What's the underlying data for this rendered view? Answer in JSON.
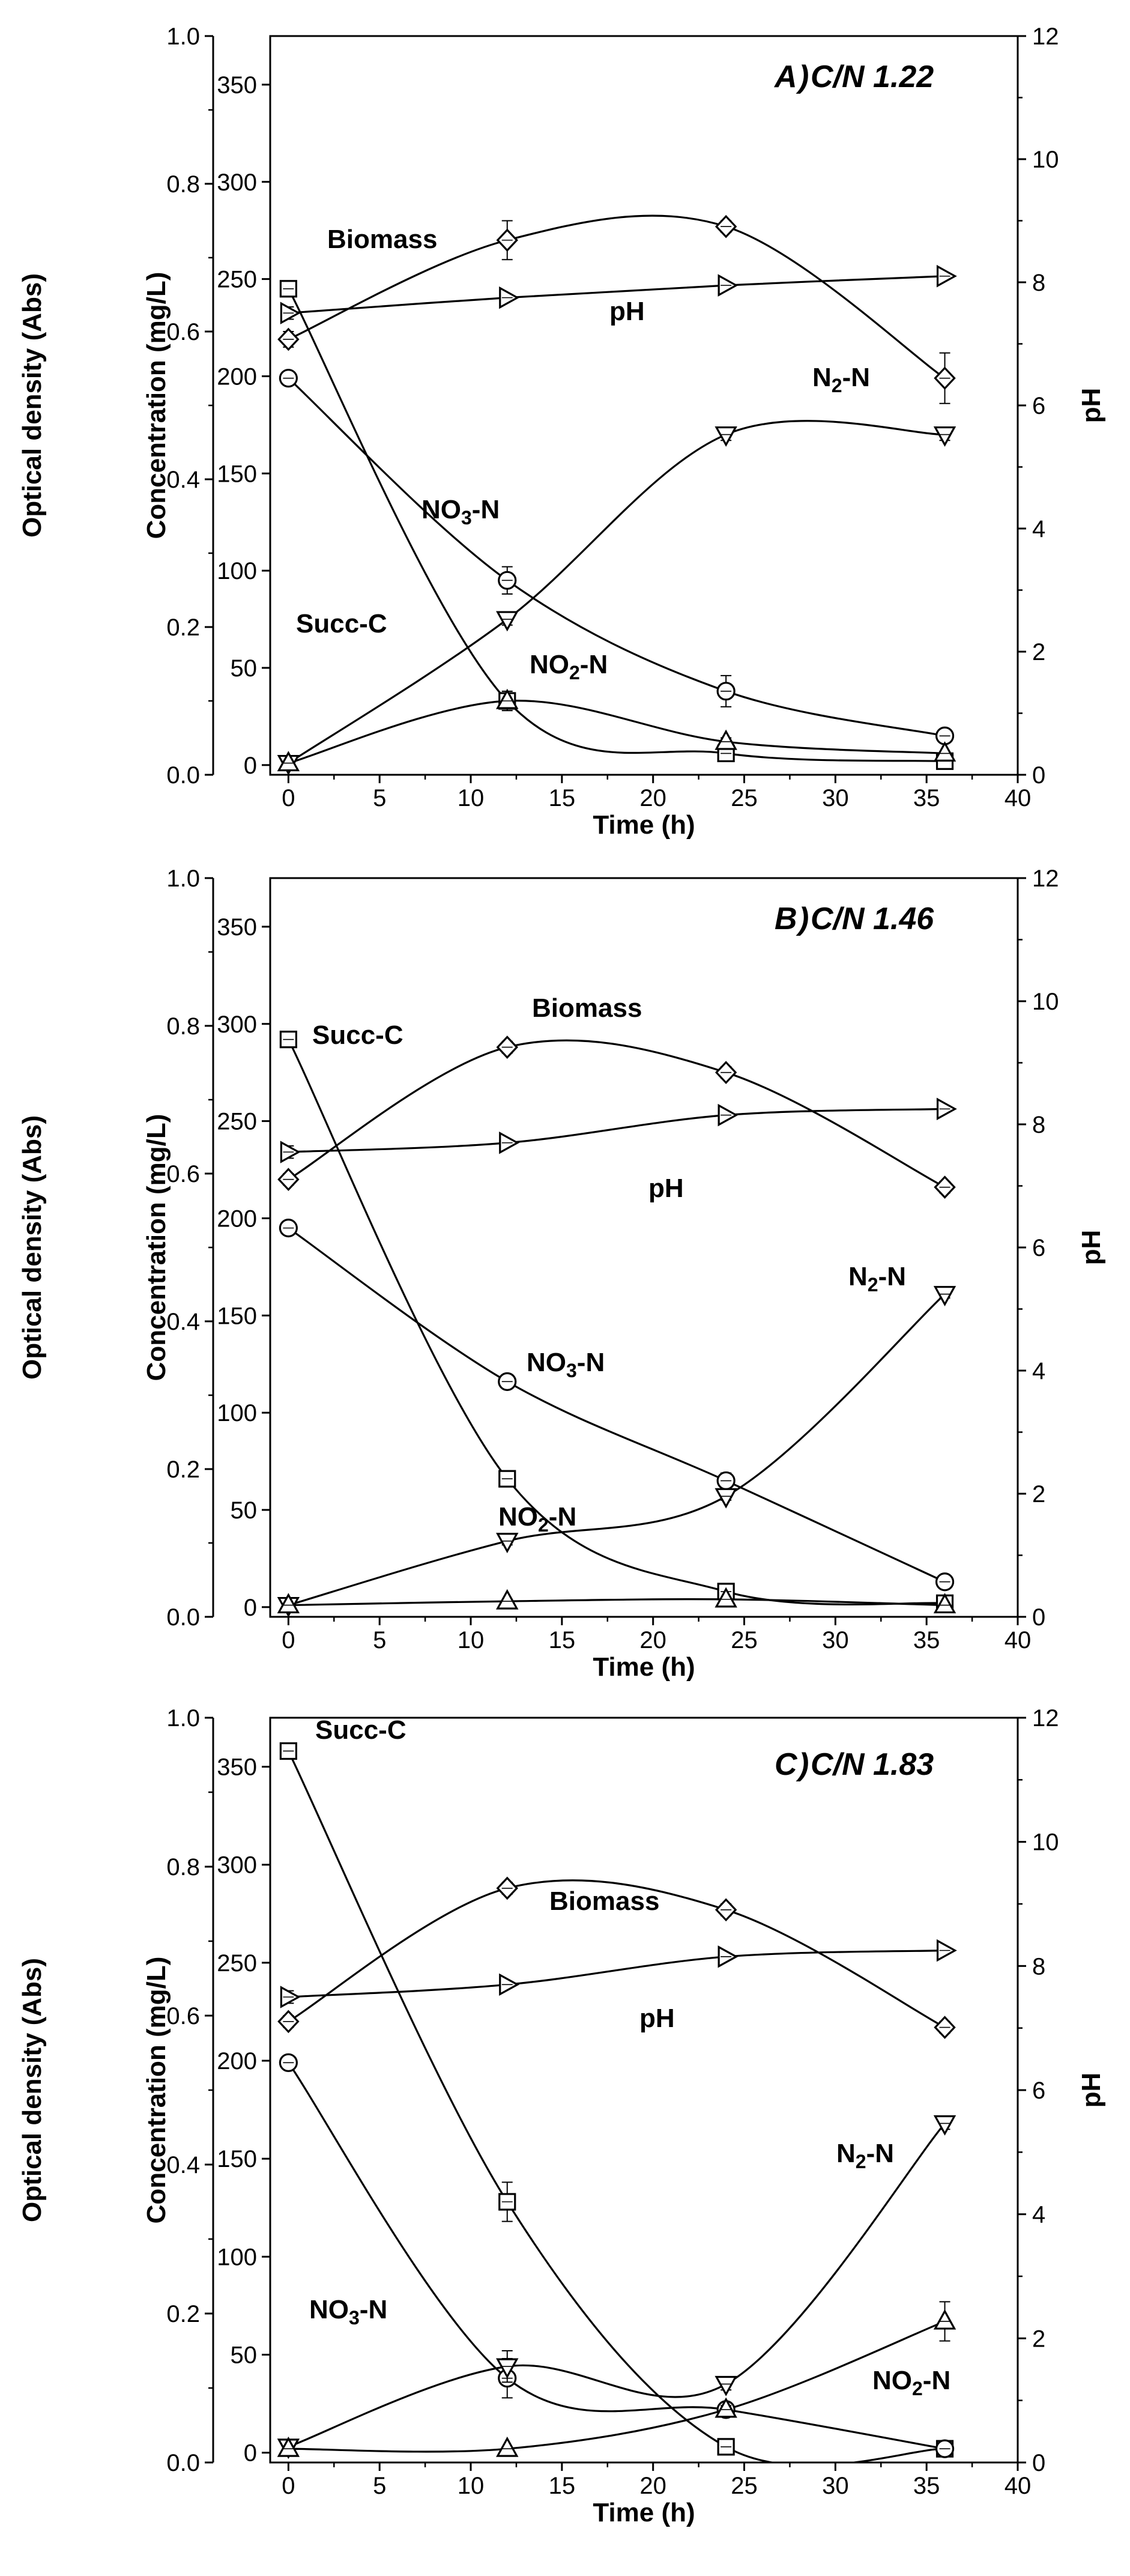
{
  "chart_data": [
    {
      "type": "line",
      "panel_letter": "A",
      "title": "C/N 1.22",
      "x": [
        0,
        12,
        24,
        36
      ],
      "xlabel": "Time (h)",
      "xticks": [
        "0",
        "5",
        "10",
        "15",
        "20",
        "25",
        "30",
        "35",
        "40"
      ],
      "xlim": [
        -1,
        40
      ],
      "ylabel_outer": "Optical density (Abs)",
      "ylim_outer": [
        0,
        1
      ],
      "yticks_outer": [
        "0.0",
        "0.2",
        "0.4",
        "0.6",
        "0.8",
        "1.0"
      ],
      "ylabel": "Concentration (mg/L)",
      "ylim": [
        -5,
        375
      ],
      "yticks": [
        "0",
        "50",
        "100",
        "150",
        "200",
        "250",
        "300",
        "350"
      ],
      "ylabel_right": "pH",
      "ylim_right": [
        0,
        12
      ],
      "yticks_right": [
        "0",
        "2",
        "4",
        "6",
        "8",
        "10",
        "12"
      ],
      "series": [
        {
          "name": "Biomass",
          "label_text": "Biomass",
          "axis": "left",
          "marker": "diamond",
          "values": [
            219,
            270,
            277,
            199
          ],
          "errors": [
            4,
            10,
            3,
            13
          ]
        },
        {
          "name": "pH",
          "label_text": "pH",
          "axis": "right",
          "marker": "triangle-right",
          "values": [
            7.5,
            7.75,
            7.95,
            8.1
          ],
          "errors": [
            0.1,
            0.05,
            0.05,
            0.05
          ]
        },
        {
          "name": "Succ-C",
          "label_text": "Succ-C",
          "axis": "left",
          "marker": "square",
          "values": [
            245,
            33,
            6,
            2
          ],
          "errors": [
            2,
            4,
            2,
            1
          ]
        },
        {
          "name": "NO3-N",
          "label_text": "NO₃-N",
          "axis": "left",
          "marker": "circle",
          "values": [
            199,
            95,
            38,
            15
          ],
          "errors": [
            3,
            7,
            8,
            3
          ]
        },
        {
          "name": "N2-N",
          "label_text": "N₂-N",
          "axis": "left",
          "marker": "triangle-down",
          "values": [
            1,
            75,
            170,
            170
          ],
          "errors": [
            1,
            3,
            3,
            3
          ]
        },
        {
          "name": "NO2-N",
          "label_text": "NO₂-N",
          "axis": "left",
          "marker": "triangle-up",
          "values": [
            1,
            33,
            12,
            6
          ],
          "errors": [
            1,
            5,
            2,
            1
          ]
        }
      ]
    },
    {
      "type": "line",
      "panel_letter": "B",
      "title": "C/N 1.46",
      "x": [
        0,
        12,
        24,
        36
      ],
      "xlabel": "Time (h)",
      "xticks": [
        "0",
        "5",
        "10",
        "15",
        "20",
        "25",
        "30",
        "35",
        "40"
      ],
      "xlim": [
        -1,
        40
      ],
      "ylabel_outer": "Optical density (Abs)",
      "ylim_outer": [
        0,
        1
      ],
      "yticks_outer": [
        "0.0",
        "0.2",
        "0.4",
        "0.6",
        "0.8",
        "1.0"
      ],
      "ylabel": "Concentration (mg/L)",
      "ylim": [
        -5,
        375
      ],
      "yticks": [
        "0",
        "50",
        "100",
        "150",
        "200",
        "250",
        "300",
        "350"
      ],
      "ylabel_right": "pH",
      "ylim_right": [
        0,
        12
      ],
      "yticks_right": [
        "0",
        "2",
        "4",
        "6",
        "8",
        "10",
        "12"
      ],
      "series": [
        {
          "name": "Biomass",
          "label_text": "Biomass",
          "axis": "left",
          "marker": "diamond",
          "values": [
            220,
            288,
            275,
            216
          ],
          "errors": [
            3,
            3,
            3,
            3
          ]
        },
        {
          "name": "pH",
          "label_text": "pH",
          "axis": "right",
          "marker": "triangle-right",
          "values": [
            7.55,
            7.7,
            8.15,
            8.25
          ],
          "errors": [
            0.1,
            0.05,
            0.05,
            0.05
          ]
        },
        {
          "name": "Succ-C",
          "label_text": "Succ-C",
          "axis": "left",
          "marker": "square",
          "values": [
            292,
            66,
            8,
            2
          ],
          "errors": [
            2,
            2,
            2,
            1
          ]
        },
        {
          "name": "NO3-N",
          "label_text": "NO₃-N",
          "axis": "left",
          "marker": "circle",
          "values": [
            195,
            116,
            65,
            13
          ],
          "errors": [
            3,
            2,
            4,
            2
          ]
        },
        {
          "name": "N2-N",
          "label_text": "N₂-N",
          "axis": "left",
          "marker": "triangle-down",
          "values": [
            1,
            34,
            57,
            161
          ],
          "errors": [
            1,
            2,
            2,
            2
          ]
        },
        {
          "name": "NO2-N",
          "label_text": "NO₂-N",
          "axis": "left",
          "marker": "triangle-up",
          "values": [
            1,
            3,
            4,
            1
          ],
          "errors": [
            1,
            1,
            1,
            1
          ]
        }
      ]
    },
    {
      "type": "line",
      "panel_letter": "C",
      "title": "C/N 1.83",
      "x": [
        0,
        12,
        24,
        36
      ],
      "xlabel": "Time (h)",
      "xticks": [
        "0",
        "5",
        "10",
        "15",
        "20",
        "25",
        "30",
        "35",
        "40"
      ],
      "xlim": [
        -1,
        40
      ],
      "ylabel_outer": "Optical density (Abs)",
      "ylim_outer": [
        0,
        1
      ],
      "yticks_outer": [
        "0.0",
        "0.2",
        "0.4",
        "0.6",
        "0.8",
        "1.0"
      ],
      "ylabel": "Concentration (mg/L)",
      "ylim": [
        -5,
        375
      ],
      "yticks": [
        "0",
        "50",
        "100",
        "150",
        "200",
        "250",
        "300",
        "350"
      ],
      "ylabel_right": "pH",
      "ylim_right": [
        0,
        12
      ],
      "yticks_right": [
        "0",
        "2",
        "4",
        "6",
        "8",
        "10",
        "12"
      ],
      "series": [
        {
          "name": "Biomass",
          "label_text": "Biomass",
          "axis": "left",
          "marker": "diamond",
          "values": [
            220,
            288,
            277,
            217
          ],
          "errors": [
            3,
            3,
            3,
            3
          ]
        },
        {
          "name": "pH",
          "label_text": "pH",
          "axis": "right",
          "marker": "triangle-right",
          "values": [
            7.5,
            7.7,
            8.15,
            8.25
          ],
          "errors": [
            0.1,
            0.05,
            0.05,
            0.05
          ]
        },
        {
          "name": "Succ-C",
          "label_text": "Succ-C",
          "axis": "left",
          "marker": "square",
          "values": [
            358,
            128,
            3,
            2
          ],
          "errors": [
            2,
            10,
            2,
            1
          ]
        },
        {
          "name": "NO3-N",
          "label_text": "NO₃-N",
          "axis": "left",
          "marker": "circle",
          "values": [
            199,
            38,
            22,
            2
          ],
          "errors": [
            2,
            10,
            2,
            2
          ]
        },
        {
          "name": "N2-N",
          "label_text": "N₂-N",
          "axis": "left",
          "marker": "triangle-down",
          "values": [
            3,
            44,
            35,
            168
          ],
          "errors": [
            1,
            8,
            3,
            3
          ]
        },
        {
          "name": "NO2-N",
          "label_text": "NO₂-N",
          "axis": "left",
          "marker": "triangle-up",
          "values": [
            2,
            2,
            22,
            67
          ],
          "errors": [
            1,
            1,
            2,
            10
          ]
        }
      ]
    }
  ]
}
